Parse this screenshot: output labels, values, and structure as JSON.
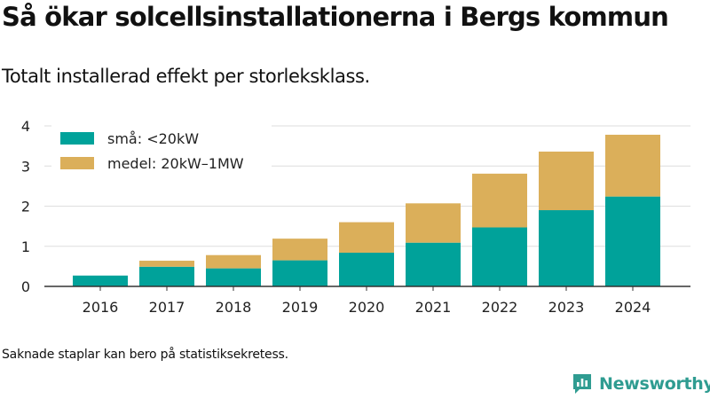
{
  "title": "Så ökar solcellsinstallationerna i Bergs kommun",
  "subtitle": "Totalt installerad effekt per storleksklass.",
  "footnote": "Saknade staplar kan bero på statistiksekretess.",
  "brand": {
    "name": "Newsworthy",
    "color": "#2f9c91",
    "icon": "newsworthy-logo-icon"
  },
  "chart_data": {
    "type": "bar",
    "stacked": true,
    "categories": [
      "2016",
      "2017",
      "2018",
      "2019",
      "2020",
      "2021",
      "2022",
      "2023",
      "2024"
    ],
    "series": [
      {
        "name": "små: <20kW",
        "color": "#00a29a",
        "values": [
          0.27,
          0.49,
          0.45,
          0.65,
          0.84,
          1.09,
          1.47,
          1.9,
          2.24
        ]
      },
      {
        "name": "medel: 20kW–1MW",
        "color": "#dbaf5a",
        "values": [
          null,
          0.15,
          0.33,
          0.54,
          0.76,
          0.98,
          1.34,
          1.46,
          1.54
        ]
      }
    ],
    "ylim": [
      0,
      4
    ],
    "yticks": [
      0,
      1,
      2,
      3,
      4
    ],
    "grid": true,
    "legend": "top-left",
    "xlabel": "",
    "ylabel": ""
  }
}
